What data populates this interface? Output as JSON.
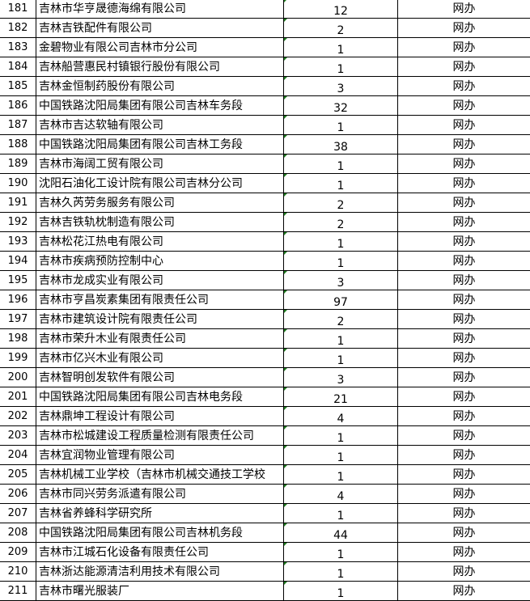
{
  "rows": [
    {
      "no": "181",
      "name": "吉林市华亨晟德海绵有限公司",
      "count": "12",
      "type": "网办"
    },
    {
      "no": "182",
      "name": "吉林吉铁配件有限公司",
      "count": "2",
      "type": "网办"
    },
    {
      "no": "183",
      "name": "金碧物业有限公司吉林市分公司",
      "count": "1",
      "type": "网办"
    },
    {
      "no": "184",
      "name": "吉林船营惠民村镇银行股份有限公司",
      "count": "1",
      "type": "网办"
    },
    {
      "no": "185",
      "name": "吉林金恒制药股份有限公司",
      "count": "3",
      "type": "网办"
    },
    {
      "no": "186",
      "name": "中国铁路沈阳局集团有限公司吉林车务段",
      "count": "32",
      "type": "网办"
    },
    {
      "no": "187",
      "name": "吉林市吉达软轴有限公司",
      "count": "1",
      "type": "网办"
    },
    {
      "no": "188",
      "name": "中国铁路沈阳局集团有限公司吉林工务段",
      "count": "38",
      "type": "网办"
    },
    {
      "no": "189",
      "name": "吉林市海阔工贸有限公司",
      "count": "1",
      "type": "网办"
    },
    {
      "no": "190",
      "name": "沈阳石油化工设计院有限公司吉林分公司",
      "count": "1",
      "type": "网办"
    },
    {
      "no": "191",
      "name": "吉林久芮劳务服务有限公司",
      "count": "2",
      "type": "网办"
    },
    {
      "no": "192",
      "name": "吉林吉铁轨枕制造有限公司",
      "count": "2",
      "type": "网办"
    },
    {
      "no": "193",
      "name": "吉林松花江热电有限公司",
      "count": "1",
      "type": "网办"
    },
    {
      "no": "194",
      "name": "吉林市疾病预防控制中心",
      "count": "1",
      "type": "网办"
    },
    {
      "no": "195",
      "name": "吉林市龙成实业有限公司",
      "count": "3",
      "type": "网办"
    },
    {
      "no": "196",
      "name": "吉林市亨昌炭素集团有限责任公司",
      "count": "97",
      "type": "网办"
    },
    {
      "no": "197",
      "name": "吉林市建筑设计院有限责任公司",
      "count": "2",
      "type": "网办"
    },
    {
      "no": "198",
      "name": "吉林市荣升木业有限责任公司",
      "count": "1",
      "type": "网办"
    },
    {
      "no": "199",
      "name": "吉林市亿兴木业有限公司",
      "count": "1",
      "type": "网办"
    },
    {
      "no": "200",
      "name": "吉林智明创发软件有限公司",
      "count": "3",
      "type": "网办"
    },
    {
      "no": "201",
      "name": "中国铁路沈阳局集团有限公司吉林电务段",
      "count": "21",
      "type": "网办"
    },
    {
      "no": "202",
      "name": "吉林鼎坤工程设计有限公司",
      "count": "4",
      "type": "网办"
    },
    {
      "no": "203",
      "name": "吉林市松城建设工程质量检测有限责任公司",
      "count": "1",
      "type": "网办"
    },
    {
      "no": "204",
      "name": "吉林宜润物业管理有限公司",
      "count": "1",
      "type": "网办"
    },
    {
      "no": "205",
      "name": "吉林机械工业学校（吉林市机械交通技工学校",
      "count": "1",
      "type": "网办"
    },
    {
      "no": "206",
      "name": "吉林市同兴劳务派遣有限公司",
      "count": "4",
      "type": "网办"
    },
    {
      "no": "207",
      "name": "吉林省养蜂科学研究所",
      "count": "1",
      "type": "网办"
    },
    {
      "no": "208",
      "name": "中国铁路沈阳局集团有限公司吉林机务段",
      "count": "44",
      "type": "网办"
    },
    {
      "no": "209",
      "name": "吉林市江城石化设备有限责任公司",
      "count": "1",
      "type": "网办"
    },
    {
      "no": "210",
      "name": "吉林浙达能源清洁利用技术有限公司",
      "count": "1",
      "type": "网办"
    },
    {
      "no": "211",
      "name": "吉林市曙光服装厂",
      "count": "1",
      "type": "网办"
    }
  ]
}
